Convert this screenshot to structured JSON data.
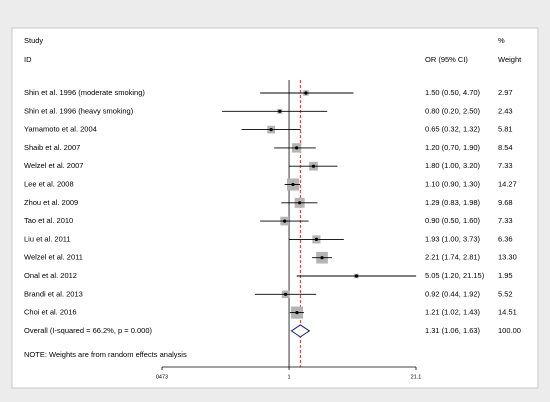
{
  "chart_data": {
    "type": "forest",
    "headers": {
      "study": "Study",
      "id": "ID",
      "estimate": "OR (95% CI)",
      "pct": "%",
      "weight": "Weight"
    },
    "categories": [
      "Shin et al. 1996 (moderate smoking)",
      "Shin et al. 1996 (heavy smoking)",
      "Yamamoto et al. 2004",
      "Shaib et al. 2007",
      "Welzel et al. 2007",
      "Lee et al. 2008",
      "Zhou et al. 2009",
      "Tao et al. 2010",
      "Liu et al. 2011",
      "Welzel et al. 2011",
      "Onal et al. 2012",
      "Brandi et al. 2013",
      "Choi et al. 2016"
    ],
    "values": [
      1.5,
      0.8,
      0.65,
      1.2,
      1.8,
      1.1,
      1.29,
      0.9,
      1.93,
      2.21,
      5.05,
      0.92,
      1.21
    ],
    "ci_low": [
      0.5,
      0.2,
      0.32,
      0.7,
      1.0,
      0.9,
      0.83,
      0.5,
      1.0,
      1.74,
      1.2,
      0.44,
      1.02
    ],
    "ci_high": [
      4.7,
      2.5,
      1.32,
      1.9,
      3.2,
      1.3,
      1.98,
      1.6,
      3.73,
      2.81,
      21.15,
      1.92,
      1.43
    ],
    "estimate_labels": [
      "1.50 (0.50, 4.70)",
      "0.80 (0.20, 2.50)",
      "0.65 (0.32, 1.32)",
      "1.20 (0.70, 1.90)",
      "1.80 (1.00, 3.20)",
      "1.10 (0.90, 1.30)",
      "1.29 (0.83, 1.98)",
      "0.90 (0.50, 1.60)",
      "1.93 (1.00, 3.73)",
      "2.21 (1.74, 2.81)",
      "5.05 (1.20, 21.15)",
      "0.92 (0.44, 1.92)",
      "1.21 (1.02, 1.43)"
    ],
    "weights": [
      2.97,
      2.43,
      5.81,
      8.54,
      7.33,
      14.27,
      9.68,
      7.33,
      6.36,
      13.3,
      1.95,
      5.52,
      14.51
    ],
    "weight_labels": [
      "2.97",
      "2.43",
      "5.81",
      "8.54",
      "7.33",
      "14.27",
      "9.68",
      "7.33",
      "6.36",
      "13.30",
      "1.95",
      "5.52",
      "14.51"
    ],
    "overall": {
      "name": "Overall  (I-squared = 66.2%, p = 0.000)",
      "value": 1.31,
      "ci_low": 1.06,
      "ci_high": 1.63,
      "estimate_label": "1.31 (1.06, 1.63)",
      "weight": 100,
      "weight_label": "100.00"
    },
    "note": "NOTE: Weights are from random effects analysis",
    "xlim": [
      0.0473,
      21.1
    ],
    "xticks": [
      {
        "value": 0.0473,
        "label": "0473"
      },
      1,
      21.1
    ],
    "log_scale": true,
    "reference_line": 1,
    "colors": {
      "square": "#b4b4b4",
      "line": "#000000",
      "diamond": "#1a237e",
      "pooled_line": "#c00000"
    }
  }
}
